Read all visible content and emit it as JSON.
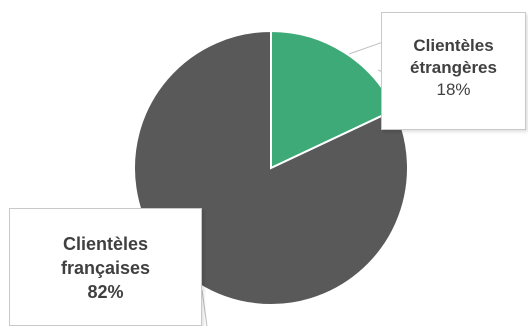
{
  "chart_data": {
    "type": "pie",
    "title": "",
    "slices": [
      {
        "label_line1": "Clientèles",
        "label_line2": "étrangères",
        "value": 18,
        "value_label": "18%",
        "color": "#3daa78"
      },
      {
        "label_line1": "Clientèles",
        "label_line2": "françaises",
        "value": 82,
        "value_label": "82%",
        "color": "#595959"
      }
    ],
    "start_angle": "12 o'clock",
    "direction": "clockwise",
    "legend": "none"
  }
}
